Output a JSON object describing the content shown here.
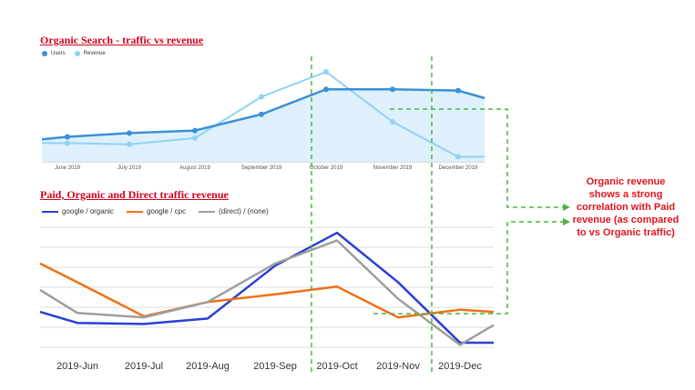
{
  "annotation": "Organic revenue shows a strong correlation with Paid revenue (as compared to vs Organic traffic)",
  "chart_data": [
    {
      "type": "line",
      "title": "Organic Search - traffic vs revenue",
      "categories": [
        "June 2019",
        "July 2019",
        "August 2019",
        "September 2019",
        "October 2019",
        "November 2019",
        "December 2019"
      ],
      "series": [
        {
          "name": "Users",
          "color": "#3a91d6",
          "values": [
            20,
            23,
            25,
            38,
            58,
            58,
            57
          ],
          "start": 18,
          "end": 51
        },
        {
          "name": "Revenue",
          "color": "#8fd3f4",
          "values": [
            15,
            14,
            19,
            52,
            72,
            32,
            4
          ],
          "start": 15,
          "end": 4
        }
      ],
      "ylim": [
        0,
        80
      ],
      "area_fill": true
    },
    {
      "type": "line",
      "title": "Paid, Organic and Direct traffic revenue",
      "categories": [
        "2019-Jun",
        "2019-Jul",
        "2019-Aug",
        "2019-Sep",
        "2019-Oct",
        "2019-Nov",
        "2019-Dec"
      ],
      "series": [
        {
          "name": "google / organic",
          "color": "#2a3fd6",
          "values": [
            18,
            17,
            22,
            70,
            100,
            55,
            0
          ],
          "start": 28,
          "end": 0
        },
        {
          "name": "google / cpc",
          "color": "#f07016",
          "values": [
            55,
            24,
            37,
            44,
            51,
            23,
            30
          ],
          "start": 72,
          "end": 28
        },
        {
          "name": "(direct) / (none)",
          "color": "#9e9e9e",
          "values": [
            27,
            23,
            37,
            72,
            93,
            40,
            -2
          ],
          "start": 48,
          "end": 16
        }
      ],
      "ylim": [
        -5,
        105
      ],
      "grid": true
    }
  ]
}
